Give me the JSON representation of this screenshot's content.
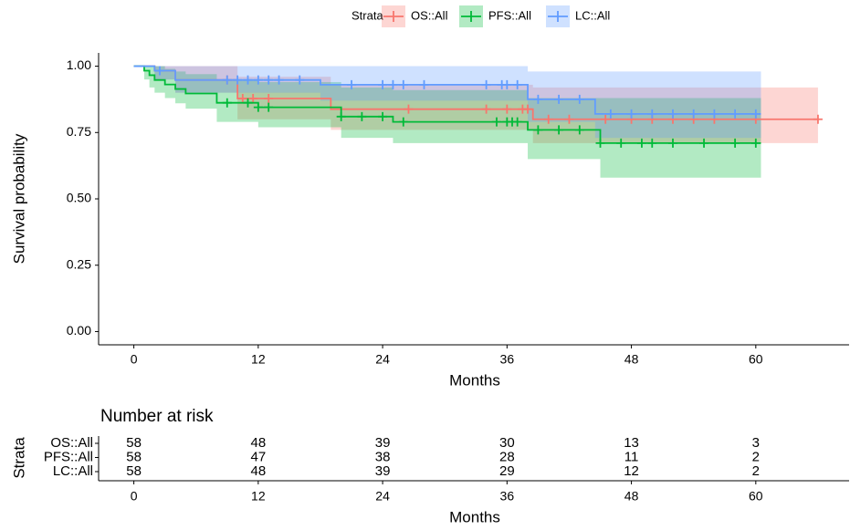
{
  "chart_data": {
    "type": "survival",
    "legend_title": "Strata",
    "x_label": "Months",
    "y_label": "Survival probability",
    "xlim": [
      -3.4,
      69
    ],
    "ylim": [
      -0.05,
      1.05
    ],
    "xticks": [
      0,
      12,
      24,
      36,
      48,
      60
    ],
    "yticks": [
      {
        "value": 0,
        "label": "0.00"
      },
      {
        "value": 0.25,
        "label": "0.25"
      },
      {
        "value": 0.5,
        "label": "0.50"
      },
      {
        "value": 0.75,
        "label": "0.75"
      },
      {
        "value": 1,
        "label": "1.00"
      }
    ],
    "legend_position": "top",
    "risk_table_title": "Number at risk",
    "series": [
      {
        "name": "OS::All",
        "color": "#F8766D",
        "x": [
          0,
          2,
          4,
          10,
          19,
          38.5,
          66
        ],
        "values": [
          1,
          0.983,
          0.948,
          0.878,
          0.838,
          0.8,
          0.8
        ],
        "lower": [
          1,
          0.95,
          0.9,
          0.8,
          0.76,
          0.71,
          0.69
        ],
        "upper": [
          1,
          1,
          1,
          0.96,
          0.93,
          0.92,
          0.92
        ],
        "censor_x": [
          9,
          10.5,
          11.5,
          13,
          26.5,
          34,
          36,
          37.5,
          38,
          40,
          42,
          45.5,
          48,
          50,
          52,
          54,
          56,
          60,
          66
        ],
        "at_risk": [
          58,
          48,
          39,
          30,
          13,
          3
        ]
      },
      {
        "name": "PFS::All",
        "color": "#00BA38",
        "x": [
          0,
          1,
          1.5,
          2,
          3,
          4,
          5,
          8,
          12,
          20,
          25,
          38,
          45,
          60.5
        ],
        "values": [
          1,
          0.983,
          0.966,
          0.948,
          0.931,
          0.914,
          0.897,
          0.862,
          0.845,
          0.81,
          0.79,
          0.76,
          0.71,
          0.71
        ],
        "lower": [
          1,
          0.95,
          0.92,
          0.9,
          0.88,
          0.86,
          0.84,
          0.79,
          0.77,
          0.73,
          0.71,
          0.65,
          0.58,
          0.58
        ],
        "upper": [
          1,
          1,
          1,
          1,
          0.99,
          0.98,
          0.97,
          0.95,
          0.94,
          0.92,
          0.91,
          0.88,
          0.88,
          0.88
        ],
        "censor_x": [
          9,
          11,
          12,
          13,
          20,
          22,
          24,
          26,
          35,
          36,
          36.5,
          37,
          39,
          41,
          43,
          45,
          47,
          49,
          50,
          52,
          55,
          58,
          60
        ],
        "at_risk": [
          58,
          47,
          38,
          28,
          11,
          2
        ]
      },
      {
        "name": "LC::All",
        "color": "#619CFF",
        "x": [
          0,
          2,
          4,
          18,
          38,
          44.5,
          60.5
        ],
        "values": [
          1,
          0.983,
          0.948,
          0.93,
          0.875,
          0.82,
          0.82
        ],
        "lower": [
          1,
          0.95,
          0.9,
          0.87,
          0.79,
          0.73,
          0.73
        ],
        "upper": [
          1,
          1,
          1,
          1,
          0.98,
          0.98,
          0.98
        ],
        "censor_x": [
          2.5,
          9,
          10,
          11,
          12,
          13,
          14,
          16,
          21,
          24,
          25,
          26,
          28,
          34,
          35.5,
          36,
          37,
          39,
          41,
          43,
          46,
          48,
          50,
          52,
          54,
          56,
          58,
          60
        ],
        "at_risk": [
          58,
          48,
          39,
          29,
          12,
          2
        ]
      }
    ]
  }
}
